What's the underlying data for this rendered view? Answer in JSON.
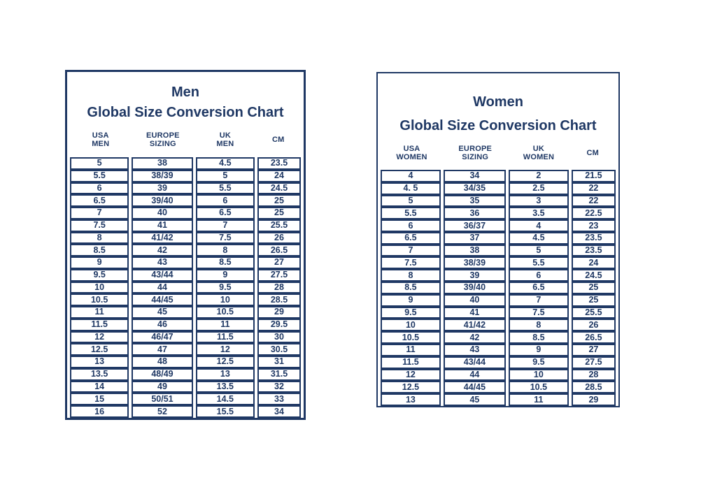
{
  "colors": {
    "accent": "#1f3864",
    "background": "#ffffff"
  },
  "chart_data": [
    {
      "type": "table",
      "name": "men-global-size-conversion",
      "title_line1": "Men",
      "title_line2": "Global Size Conversion Chart",
      "columns": [
        {
          "line1": "USA",
          "line2": "MEN"
        },
        {
          "line1": "EUROPE",
          "line2": "SIZING"
        },
        {
          "line1": "UK",
          "line2": "MEN"
        },
        {
          "line1": "CM",
          "line2": ""
        }
      ],
      "rows": [
        [
          "5",
          "38",
          "4.5",
          "23.5"
        ],
        [
          "5.5",
          "38/39",
          "5",
          "24"
        ],
        [
          "6",
          "39",
          "5.5",
          "24.5"
        ],
        [
          "6.5",
          "39/40",
          "6",
          "25"
        ],
        [
          "7",
          "40",
          "6.5",
          "25"
        ],
        [
          "7.5",
          "41",
          "7",
          "25.5"
        ],
        [
          "8",
          "41/42",
          "7.5",
          "26"
        ],
        [
          "8.5",
          "42",
          "8",
          "26.5"
        ],
        [
          "9",
          "43",
          "8.5",
          "27"
        ],
        [
          "9.5",
          "43/44",
          "9",
          "27.5"
        ],
        [
          "10",
          "44",
          "9.5",
          "28"
        ],
        [
          "10.5",
          "44/45",
          "10",
          "28.5"
        ],
        [
          "11",
          "45",
          "10.5",
          "29"
        ],
        [
          "11.5",
          "46",
          "11",
          "29.5"
        ],
        [
          "12",
          "46/47",
          "11.5",
          "30"
        ],
        [
          "12.5",
          "47",
          "12",
          "30.5"
        ],
        [
          "13",
          "48",
          "12.5",
          "31"
        ],
        [
          "13.5",
          "48/49",
          "13",
          "31.5"
        ],
        [
          "14",
          "49",
          "13.5",
          "32"
        ],
        [
          "15",
          "50/51",
          "14.5",
          "33"
        ],
        [
          "16",
          "52",
          "15.5",
          "34"
        ]
      ]
    },
    {
      "type": "table",
      "name": "women-global-size-conversion",
      "title_line1": "Women",
      "title_line2": "Global Size Conversion Chart",
      "columns": [
        {
          "line1": "USA",
          "line2": "WOMEN"
        },
        {
          "line1": "EUROPE",
          "line2": "SIZING"
        },
        {
          "line1": "UK",
          "line2": "WOMEN"
        },
        {
          "line1": "CM",
          "line2": ""
        }
      ],
      "rows": [
        [
          "4",
          "34",
          "2",
          "21.5"
        ],
        [
          "4. 5",
          "34/35",
          "2.5",
          "22"
        ],
        [
          "5",
          "35",
          "3",
          "22"
        ],
        [
          "5.5",
          "36",
          "3.5",
          "22.5"
        ],
        [
          "6",
          "36/37",
          "4",
          "23"
        ],
        [
          "6.5",
          "37",
          "4.5",
          "23.5"
        ],
        [
          "7",
          "38",
          "5",
          "23.5"
        ],
        [
          "7.5",
          "38/39",
          "5.5",
          "24"
        ],
        [
          "8",
          "39",
          "6",
          "24.5"
        ],
        [
          "8.5",
          "39/40",
          "6.5",
          "25"
        ],
        [
          "9",
          "40",
          "7",
          "25"
        ],
        [
          "9.5",
          "41",
          "7.5",
          "25.5"
        ],
        [
          "10",
          "41/42",
          "8",
          "26"
        ],
        [
          "10.5",
          "42",
          "8.5",
          "26.5"
        ],
        [
          "11",
          "43",
          "9",
          "27"
        ],
        [
          "11.5",
          "43/44",
          "9.5",
          "27.5"
        ],
        [
          "12",
          "44",
          "10",
          "28"
        ],
        [
          "12.5",
          "44/45",
          "10.5",
          "28.5"
        ],
        [
          "13",
          "45",
          "11",
          "29"
        ]
      ]
    }
  ]
}
